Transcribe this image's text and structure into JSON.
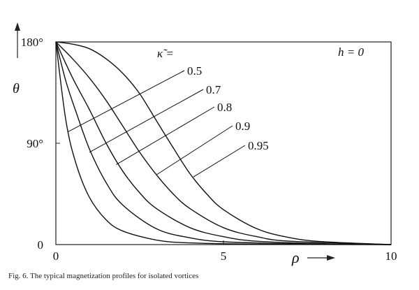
{
  "chart_data": {
    "type": "line",
    "xlabel": "ρ",
    "ylabel": "θ",
    "xlim": [
      0,
      10
    ],
    "ylim": [
      0,
      180
    ],
    "x_ticks": [
      {
        "value": 0,
        "label": "0"
      },
      {
        "value": 5,
        "label": "5"
      },
      {
        "value": 10,
        "label": "10"
      }
    ],
    "y_ticks": [
      {
        "value": 0,
        "label": "0"
      },
      {
        "value": 90,
        "label": "90°"
      },
      {
        "value": 180,
        "label": "180°"
      }
    ],
    "grid": false,
    "legend_title": "κ̃ =",
    "annotation": "h = 0",
    "series": [
      {
        "name": "0.5",
        "x": [
          0,
          0.3,
          0.6,
          1.0,
          1.5,
          2.0,
          3.0,
          4.0,
          6.0,
          10.0
        ],
        "y": [
          180,
          110,
          72,
          42,
          22,
          12,
          4,
          1.5,
          0.4,
          0
        ]
      },
      {
        "name": "0.7",
        "x": [
          0,
          0.3,
          0.6,
          1.0,
          1.5,
          2.0,
          3.0,
          4.0,
          5.0,
          7.0,
          10.0
        ],
        "y": [
          180,
          145,
          118,
          85,
          55,
          35,
          14,
          6,
          2.5,
          0.8,
          0
        ]
      },
      {
        "name": "0.8",
        "x": [
          0,
          0.5,
          1.0,
          1.5,
          2.0,
          2.5,
          3.0,
          4.0,
          5.0,
          6.0,
          8.0,
          10.0
        ],
        "y": [
          180,
          148,
          120,
          90,
          65,
          46,
          32,
          15,
          7,
          3,
          0.8,
          0
        ]
      },
      {
        "name": "0.9",
        "x": [
          0,
          0.5,
          1.0,
          1.5,
          2.0,
          2.5,
          3.0,
          3.5,
          4.0,
          5.0,
          6.0,
          7.0,
          10.0
        ],
        "y": [
          180,
          165,
          148,
          128,
          105,
          82,
          62,
          45,
          32,
          15,
          7,
          3,
          0
        ]
      },
      {
        "name": "0.95",
        "x": [
          0,
          0.5,
          1.0,
          1.5,
          2.0,
          2.5,
          3.0,
          3.5,
          4.0,
          4.5,
          5.0,
          6.0,
          7.0,
          8.0,
          10.0
        ],
        "y": [
          180,
          178,
          174,
          165,
          152,
          134,
          110,
          86,
          63,
          45,
          31,
          14,
          6,
          2.5,
          0
        ]
      }
    ],
    "leaders": [
      {
        "name": "0.5",
        "point": [
          0.35,
          100
        ]
      },
      {
        "name": "0.7",
        "point": [
          1.0,
          82
        ]
      },
      {
        "name": "0.8",
        "point": [
          1.8,
          71
        ]
      },
      {
        "name": "0.9",
        "point": [
          3.0,
          62
        ]
      },
      {
        "name": "0.95",
        "point": [
          4.1,
          60
        ]
      }
    ]
  },
  "caption": "Fig. 6. The typical magnetization profiles for isolated vortices"
}
